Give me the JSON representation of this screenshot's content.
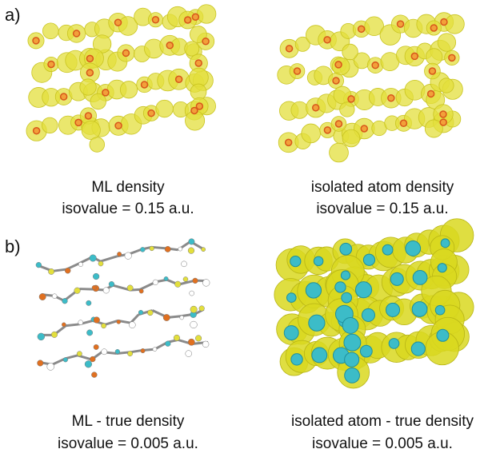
{
  "panels": [
    {
      "label": "a)",
      "images": [
        {
          "caption": "ML density",
          "isovalue": "isovalue = 0.15 a.u."
        },
        {
          "caption": "isolated atom density",
          "isovalue": "isovalue = 0.15 a.u."
        }
      ]
    },
    {
      "label": "b)",
      "images": [
        {
          "caption": "ML - true density",
          "isovalue": "isovalue = 0.005 a.u."
        },
        {
          "caption": "isolated atom - true density",
          "isovalue": "isovalue = 0.005 a.u."
        }
      ]
    }
  ]
}
